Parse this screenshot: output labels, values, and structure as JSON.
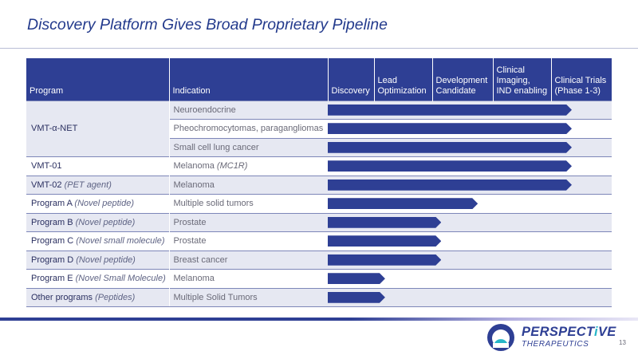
{
  "slide": {
    "title": "Discovery Platform Gives Broad Proprietary Pipeline",
    "page_number": "13"
  },
  "table": {
    "headers": {
      "program": "Program",
      "indication": "Indication",
      "discovery": "Discovery",
      "lead_optimization": "Lead Optimization",
      "development_candidate": "Development Candidate",
      "clinical_imaging": "Clinical Imaging, IND enabling",
      "clinical_trials": "Clinical Trials (Phase 1-3)"
    },
    "rows": [
      {
        "program": "VMT-α-NET",
        "program_note": "",
        "indication": "Neuroendocrine",
        "indication_note": "",
        "progress": 1.0
      },
      {
        "program": "",
        "program_note": "",
        "indication": "Pheochromocytomas, paragangliomas",
        "indication_note": "",
        "progress": 1.0
      },
      {
        "program": "",
        "program_note": "",
        "indication": "Small cell lung cancer",
        "indication_note": "",
        "progress": 1.0
      },
      {
        "program": "VMT-01",
        "program_note": "",
        "indication": "Melanoma ",
        "indication_note": "(MC1R)",
        "progress": 1.0
      },
      {
        "program": "VMT-02 ",
        "program_note": "(PET agent)",
        "indication": "Melanoma",
        "indication_note": "",
        "progress": 1.0
      },
      {
        "program": "Program A ",
        "program_note": "(Novel peptide)",
        "indication": "Multiple solid tumors",
        "indication_note": "",
        "progress": 0.615
      },
      {
        "program": "Program B ",
        "program_note": "(Novel peptide)",
        "indication": "Prostate",
        "indication_note": "",
        "progress": 0.465
      },
      {
        "program": "Program C ",
        "program_note": "(Novel small molecule)",
        "indication": "Prostate",
        "indication_note": "",
        "progress": 0.465
      },
      {
        "program": "Program D ",
        "program_note": "(Novel peptide)",
        "indication": "Breast cancer",
        "indication_note": "",
        "progress": 0.465
      },
      {
        "program": "Program E ",
        "program_note": "(Novel Small Molecule)",
        "indication": "Melanoma",
        "indication_note": "",
        "progress": 0.235
      },
      {
        "program": "Other programs ",
        "program_note": "(Peptides)",
        "indication": "Multiple Solid Tumors",
        "indication_note": "",
        "progress": 0.235
      }
    ]
  },
  "logo": {
    "name_part1": "PERSPECT",
    "name_accent": "i",
    "name_part2": "VE",
    "subtitle": "THERAPEUTICS"
  },
  "colors": {
    "brand_blue": "#2e3f94",
    "accent_teal": "#27b6c8",
    "row_shade": "#e6e8f2"
  }
}
